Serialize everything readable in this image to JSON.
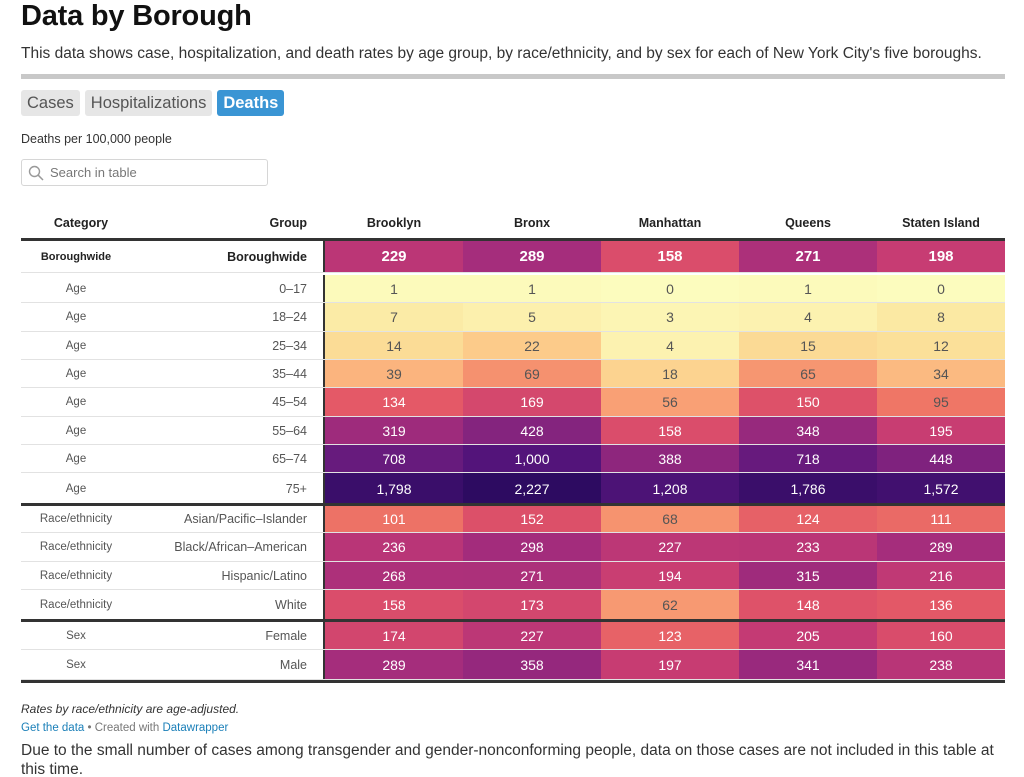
{
  "title": "Data by Borough",
  "description": "This data shows case, hospitalization, and death rates by age group, by race/ethnicity, and by sex for each of New York City's five boroughs.",
  "tabs": [
    "Cases",
    "Hospitalizations",
    "Deaths"
  ],
  "active_tab": "Deaths",
  "subtitle": "Deaths per 100,000 people",
  "search": {
    "placeholder": "Search in table",
    "icon": "search-icon"
  },
  "table": {
    "headers": [
      "Category",
      "Group",
      "Brooklyn",
      "Bronx",
      "Manhattan",
      "Queens",
      "Staten Island"
    ],
    "rows": [
      {
        "category": "Boroughwide",
        "group": "Boroughwide",
        "values": [
          "229",
          "289",
          "158",
          "271",
          "198"
        ]
      },
      {
        "category": "Age",
        "group": "0–17",
        "values": [
          "1",
          "1",
          "0",
          "1",
          "0"
        ]
      },
      {
        "category": "Age",
        "group": "18–24",
        "values": [
          "7",
          "5",
          "3",
          "4",
          "8"
        ]
      },
      {
        "category": "Age",
        "group": "25–34",
        "values": [
          "14",
          "22",
          "4",
          "15",
          "12"
        ]
      },
      {
        "category": "Age",
        "group": "35–44",
        "values": [
          "39",
          "69",
          "18",
          "65",
          "34"
        ]
      },
      {
        "category": "Age",
        "group": "45–54",
        "values": [
          "134",
          "169",
          "56",
          "150",
          "95"
        ]
      },
      {
        "category": "Age",
        "group": "55–64",
        "values": [
          "319",
          "428",
          "158",
          "348",
          "195"
        ]
      },
      {
        "category": "Age",
        "group": "65–74",
        "values": [
          "708",
          "1,000",
          "388",
          "718",
          "448"
        ]
      },
      {
        "category": "Age",
        "group": "75+",
        "values": [
          "1,798",
          "2,227",
          "1,208",
          "1,786",
          "1,572"
        ]
      },
      {
        "category": "Race/ethnicity",
        "group": "Asian/Pacific–Islander",
        "values": [
          "101",
          "152",
          "68",
          "124",
          "111"
        ]
      },
      {
        "category": "Race/ethnicity",
        "group": "Black/African–American",
        "values": [
          "236",
          "298",
          "227",
          "233",
          "289"
        ]
      },
      {
        "category": "Race/ethnicity",
        "group": "Hispanic/Latino",
        "values": [
          "268",
          "271",
          "194",
          "315",
          "216"
        ]
      },
      {
        "category": "Race/ethnicity",
        "group": "White",
        "values": [
          "158",
          "173",
          "62",
          "148",
          "136"
        ]
      },
      {
        "category": "Sex",
        "group": "Female",
        "values": [
          "174",
          "227",
          "123",
          "205",
          "160"
        ]
      },
      {
        "category": "Sex",
        "group": "Male",
        "values": [
          "289",
          "358",
          "197",
          "341",
          "238"
        ]
      }
    ]
  },
  "note": "Rates by race/ethnicity are age-adjusted.",
  "credit": {
    "link": "Get the data",
    "middle": " • Created with ",
    "tool": "Datawrapper"
  },
  "footnote": "Due to the small number of cases among transgender and gender-nonconforming people, data on those cases are not included in this table at this time.",
  "colors": {
    "accent": "#3a95d4",
    "scale": [
      "#fcfcbe",
      "#fbe49c",
      "#fcc586",
      "#f9a175",
      "#f07a66",
      "#e25567",
      "#c63b73",
      "#a52d7c",
      "#7f227e",
      "#56157c",
      "#2c0b61"
    ]
  }
}
